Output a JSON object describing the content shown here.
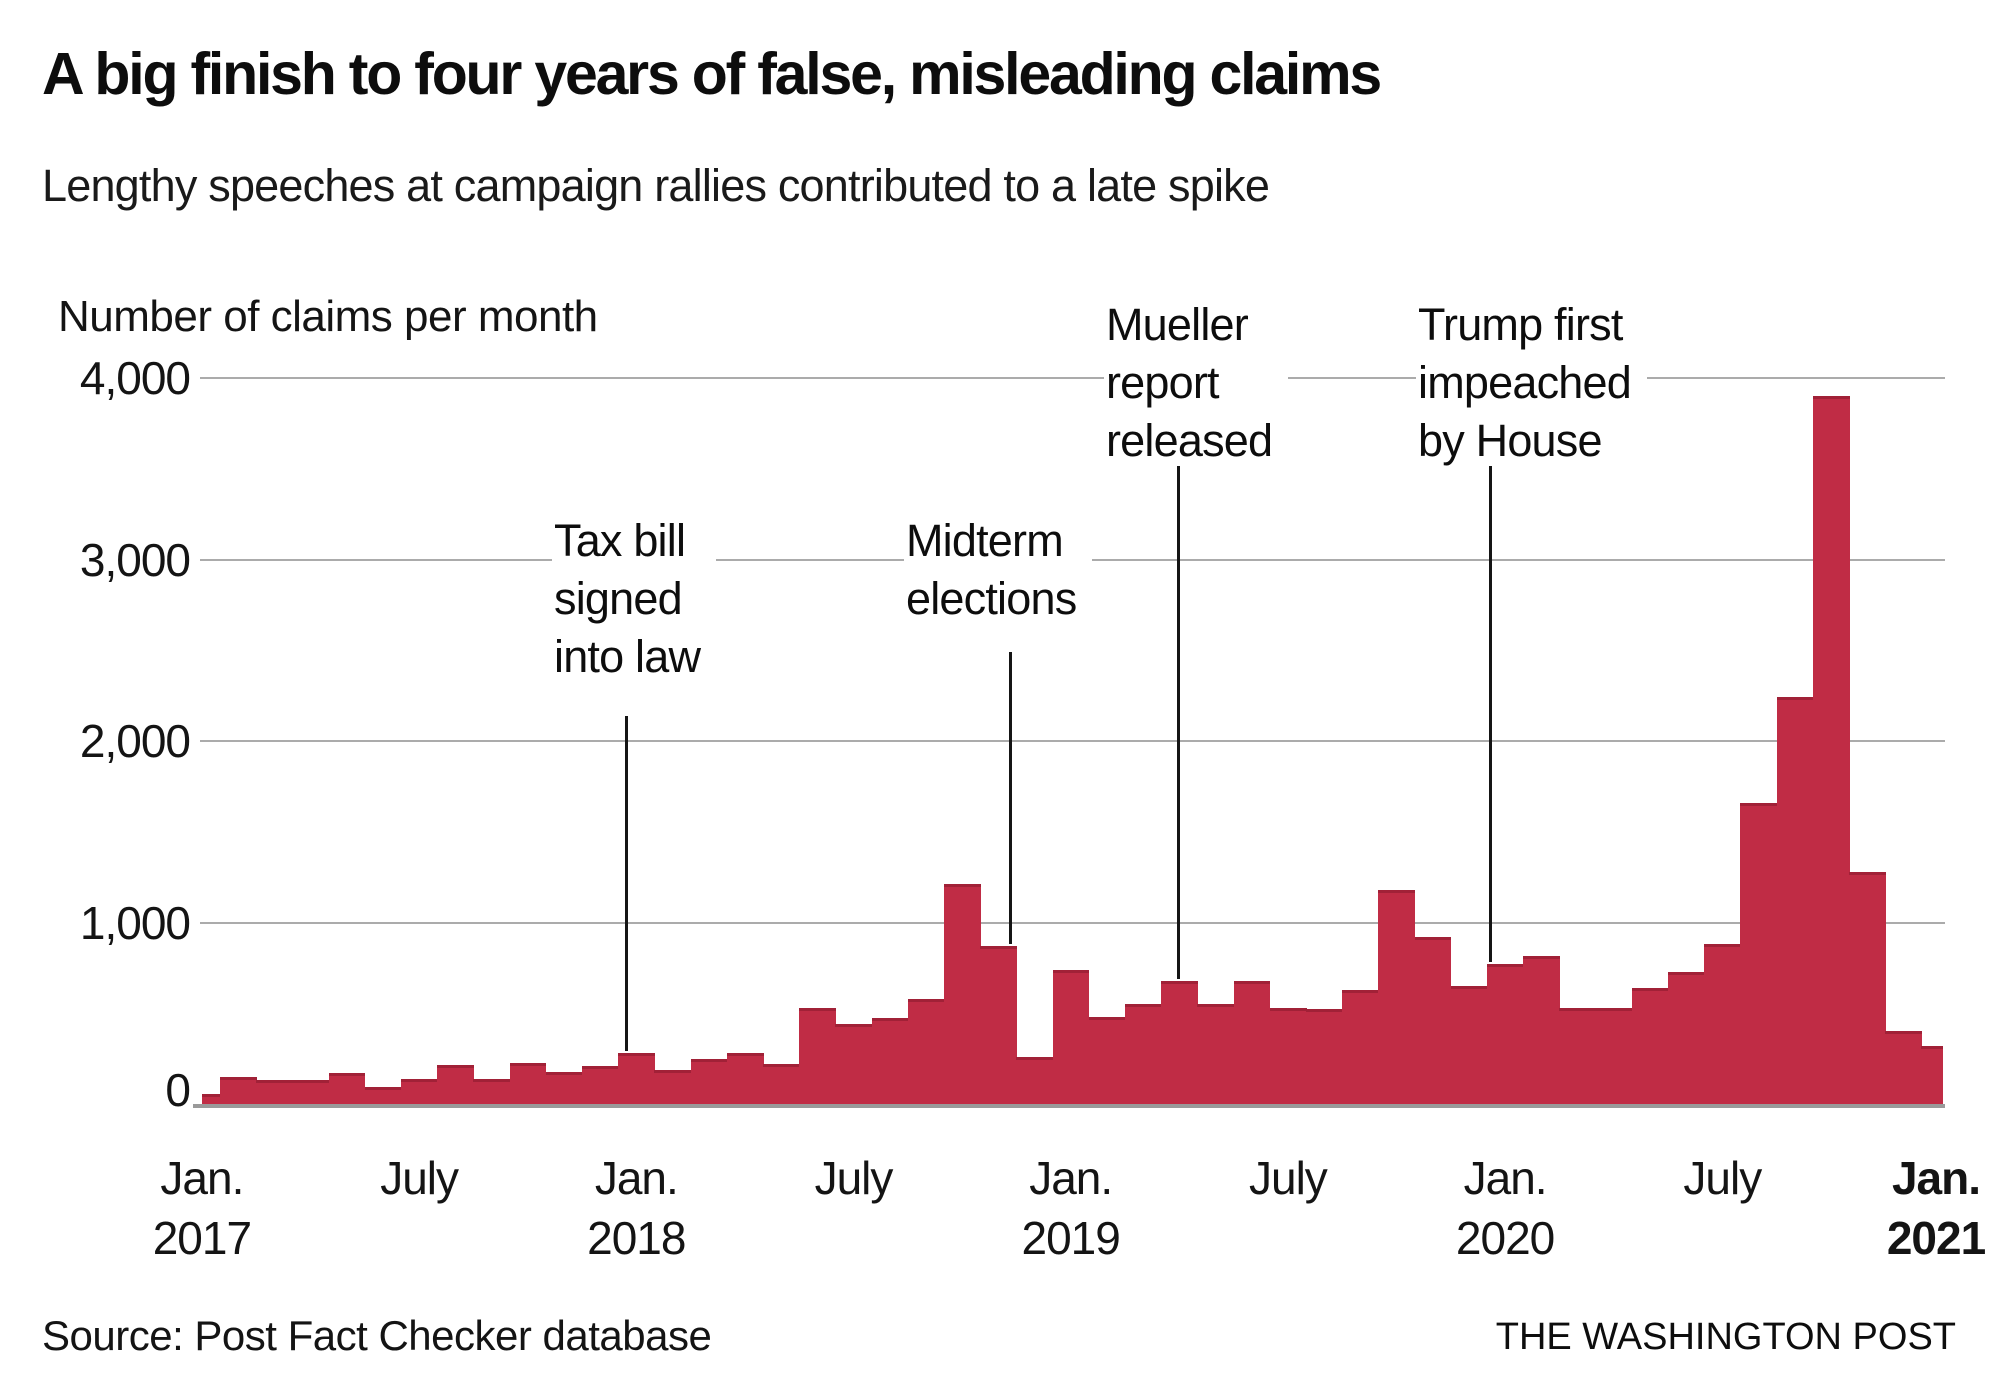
{
  "header": {
    "title": "A big finish to four years of false, misleading claims",
    "subtitle": "Lengthy speeches at campaign rallies contributed to a late spike"
  },
  "chart_data": {
    "type": "bar",
    "title": "A big finish to four years of false, misleading claims",
    "subtitle": "Lengthy speeches at campaign rallies contributed to a late spike",
    "ylabel": "Number of claims per month",
    "xlabel": "",
    "ylim": [
      0,
      4000
    ],
    "grid": "horizontal",
    "bar_color": "#c02c45",
    "y_ticks": [
      {
        "label": "4,000",
        "value": 4000
      },
      {
        "label": "3,000",
        "value": 3000
      },
      {
        "label": "2,000",
        "value": 2000
      },
      {
        "label": "1,000",
        "value": 1000
      },
      {
        "label": "0",
        "value": 0
      }
    ],
    "x_ticks": [
      {
        "line1": "Jan.",
        "line2": "2017",
        "month_index": 0,
        "bold": false
      },
      {
        "line1": "July",
        "line2": "",
        "month_index": 6,
        "bold": false
      },
      {
        "line1": "Jan.",
        "line2": "2018",
        "month_index": 12,
        "bold": false
      },
      {
        "line1": "July",
        "line2": "",
        "month_index": 18,
        "bold": false
      },
      {
        "line1": "Jan.",
        "line2": "2019",
        "month_index": 24,
        "bold": false
      },
      {
        "line1": "July",
        "line2": "",
        "month_index": 30,
        "bold": false
      },
      {
        "line1": "Jan.",
        "line2": "2020",
        "month_index": 36,
        "bold": false
      },
      {
        "line1": "July",
        "line2": "",
        "month_index": 42,
        "bold": false
      },
      {
        "line1": "Jan.",
        "line2": "2021",
        "month_index": 48,
        "bold": true
      }
    ],
    "categories": [
      "Jan. 2017",
      "Feb. 2017",
      "March 2017",
      "April 2017",
      "May 2017",
      "June 2017",
      "July 2017",
      "Aug. 2017",
      "Sept. 2017",
      "Oct. 2017",
      "Nov. 2017",
      "Dec. 2017",
      "Jan. 2018",
      "Feb. 2018",
      "March 2018",
      "April 2018",
      "May 2018",
      "June 2018",
      "July 2018",
      "Aug. 2018",
      "Sept. 2018",
      "Oct. 2018",
      "Nov. 2018",
      "Dec. 2018",
      "Jan. 2019",
      "Feb. 2019",
      "March 2019",
      "April 2019",
      "May 2019",
      "June 2019",
      "July 2019",
      "Aug. 2019",
      "Sept. 2019",
      "Oct. 2019",
      "Nov. 2019",
      "Dec. 2019",
      "Jan. 2020",
      "Feb. 2020",
      "March 2020",
      "April 2020",
      "May 2020",
      "June 2020",
      "July 2020",
      "Aug. 2020",
      "Sept. 2020",
      "Oct. 2020",
      "Nov. 2020",
      "Dec. 2020",
      "Jan. 2021"
    ],
    "values": [
      55,
      150,
      130,
      130,
      170,
      95,
      135,
      215,
      140,
      225,
      175,
      210,
      280,
      185,
      250,
      280,
      220,
      530,
      440,
      475,
      580,
      1210,
      870,
      260,
      740,
      480,
      550,
      680,
      550,
      680,
      530,
      525,
      630,
      1180,
      920,
      650,
      770,
      815,
      530,
      530,
      640,
      730,
      880,
      1660,
      2240,
      3900,
      1280,
      400,
      320
    ],
    "annotations": [
      {
        "id": "tax-bill",
        "label": "Tax bill signed into law",
        "lines": [
          "Tax bill",
          "signed",
          "into law"
        ]
      },
      {
        "id": "midterm",
        "label": "Midterm elections",
        "lines": [
          "Midterm",
          "elections"
        ]
      },
      {
        "id": "mueller",
        "label": "Mueller report released",
        "lines": [
          "Mueller",
          "report",
          "released"
        ]
      },
      {
        "id": "impeached",
        "label": "Trump first impeached by House",
        "lines": [
          "Trump first",
          "impeached",
          "by House"
        ]
      }
    ]
  },
  "footer": {
    "source": "Source: Post Fact Checker database",
    "credit": "THE WASHINGTON POST"
  }
}
